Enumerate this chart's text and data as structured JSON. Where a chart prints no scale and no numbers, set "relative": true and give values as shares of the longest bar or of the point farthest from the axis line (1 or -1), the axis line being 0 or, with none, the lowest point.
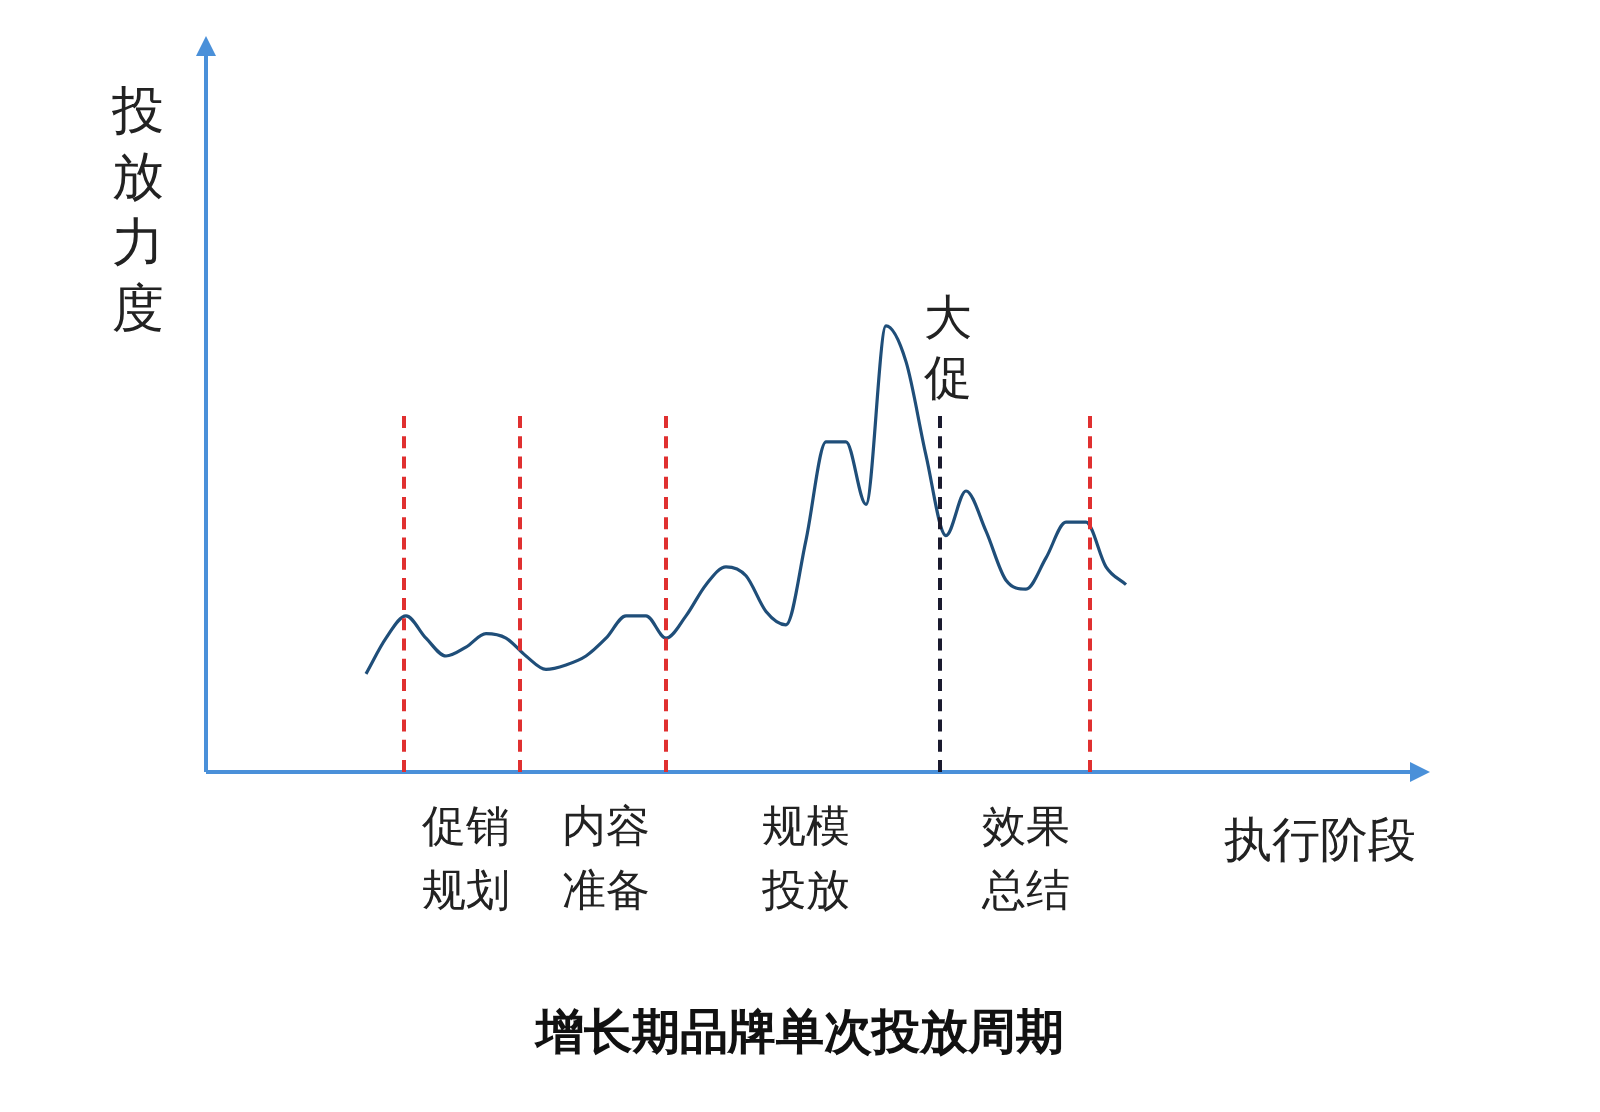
{
  "chart_data": {
    "type": "line",
    "relative": true,
    "title": "增长期品牌单次投放周期",
    "xlabel": "执行阶段",
    "ylabel": "投放力度",
    "categories": [
      null,
      null,
      null,
      null,
      null,
      "促销规划",
      null,
      null,
      null,
      null,
      null,
      null,
      "内容准备",
      null,
      null,
      null,
      null,
      null,
      null,
      null,
      null,
      null,
      "规模投放",
      null,
      null,
      null,
      null,
      null,
      null,
      null,
      null,
      null,
      null,
      "效果总结",
      null,
      null,
      null,
      null,
      null
    ],
    "series": [
      {
        "color": "#1f4e79",
        "values": [
          0.22,
          0.3,
          0.35,
          0.3,
          0.26,
          0.28,
          0.31,
          0.3,
          0.26,
          0.23,
          0.24,
          0.26,
          0.3,
          0.35,
          0.35,
          0.3,
          0.35,
          0.42,
          0.46,
          0.44,
          0.36,
          0.33,
          0.52,
          0.74,
          0.74,
          0.6,
          1,
          0.92,
          0.71,
          0.53,
          0.63,
          0.54,
          0.43,
          0.41,
          0.48,
          0.56,
          0.56,
          0.46,
          0.42
        ]
      }
    ],
    "annotations": [
      "大促"
    ],
    "marker": "none",
    "line_style": "solid",
    "legend": false
  }
}
